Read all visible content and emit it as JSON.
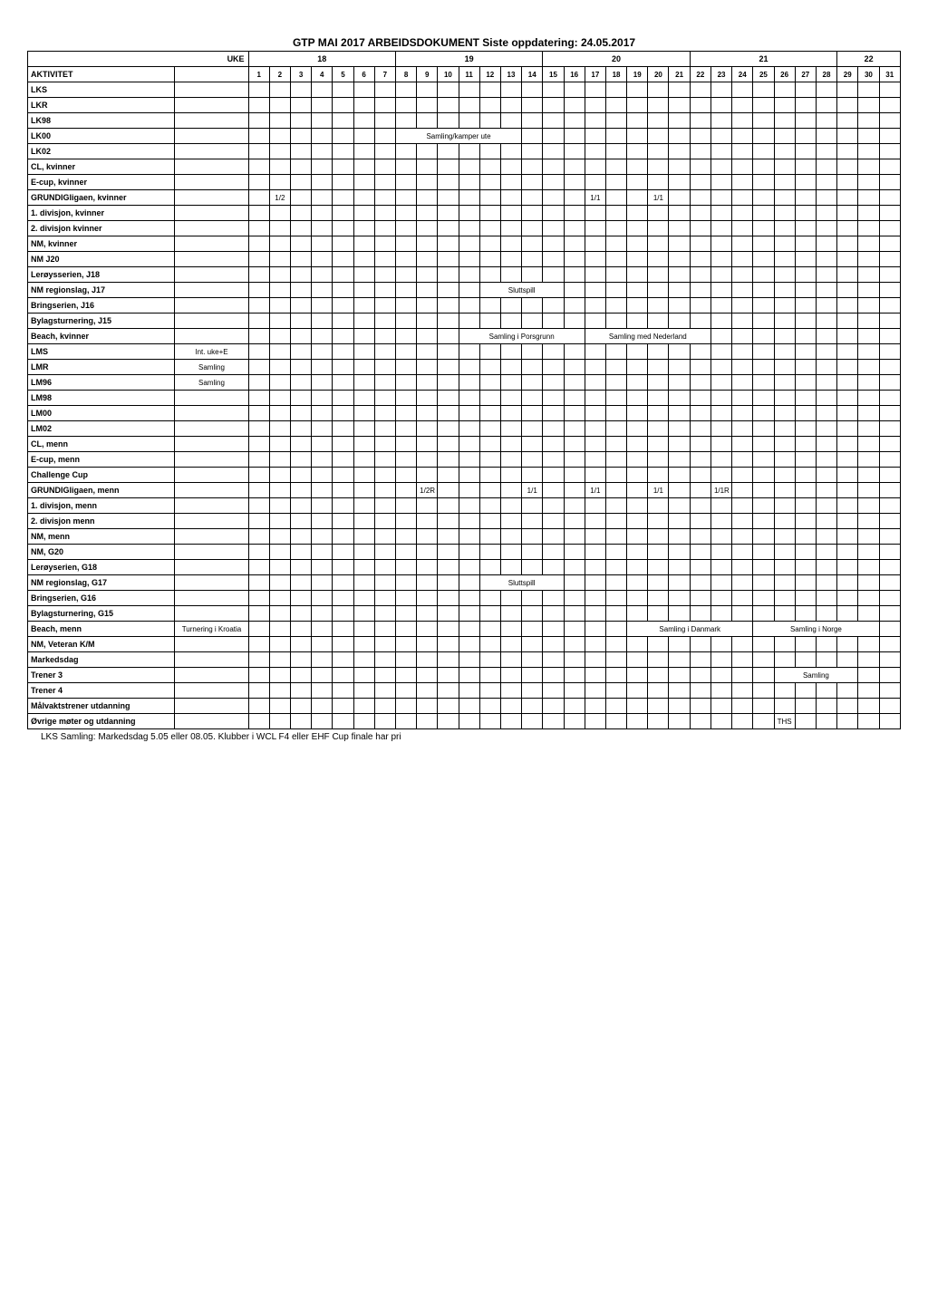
{
  "title": "GTP MAI 2017 ARBEIDSDOKUMENT Siste oppdatering: 24.05.2017",
  "uke_label": "UKE",
  "akt_label": "AKTIVITET",
  "weeks": [
    "18",
    "19",
    "20",
    "21",
    "22"
  ],
  "days": [
    "1",
    "2",
    "3",
    "4",
    "5",
    "6",
    "7",
    "8",
    "9",
    "10",
    "11",
    "12",
    "13",
    "14",
    "15",
    "16",
    "17",
    "18",
    "19",
    "20",
    "21",
    "22",
    "23",
    "24",
    "25",
    "26",
    "27",
    "28",
    "29",
    "30",
    "31"
  ],
  "activities": [
    {
      "name": "LKS",
      "cells": {
        "7": ""
      }
    },
    {
      "name": "LKR"
    },
    {
      "name": "LK98"
    },
    {
      "name": "LK00",
      "cells": {
        "8": "Samling/kamper ute"
      }
    },
    {
      "name": "LK02"
    },
    {
      "name": "CL, kvinner"
    },
    {
      "name": "E-cup, kvinner"
    },
    {
      "name": "GRUNDIGligaen, kvinner",
      "cells": {
        "2": "1/2",
        "17": "1/1",
        "20": "1/1"
      }
    },
    {
      "name": "1. divisjon, kvinner"
    },
    {
      "name": "2. divisjon kvinner"
    },
    {
      "name": "NM, kvinner"
    },
    {
      "name": "NM J20"
    },
    {
      "name": "Lerøysserien, J18"
    },
    {
      "name": "NM regionslag, J17",
      "cells": {
        "12": "Sluttspill"
      }
    },
    {
      "name": "Bringserien, J16"
    },
    {
      "name": "Bylagsturnering, J15"
    },
    {
      "name": "Beach, kvinner",
      "cells": {
        "11": "Samling i Porsgrunn",
        "17": "Samling med Nederland"
      }
    },
    {
      "name": "LMS",
      "note": "Int. uke+E"
    },
    {
      "name": "LMR",
      "note": "Samling"
    },
    {
      "name": "LM96",
      "note": "Samling"
    },
    {
      "name": "LM98"
    },
    {
      "name": "LM00"
    },
    {
      "name": "LM02"
    },
    {
      "name": "CL, menn"
    },
    {
      "name": "E-cup, menn"
    },
    {
      "name": "Challenge Cup"
    },
    {
      "name": "GRUNDIGligaen, menn",
      "cells": {
        "9": "1/2R",
        "14": "1/1",
        "17": "1/1",
        "20": "1/1",
        "23": "1/1R"
      }
    },
    {
      "name": "1. divisjon, menn"
    },
    {
      "name": "2. divisjon menn"
    },
    {
      "name": "NM, menn"
    },
    {
      "name": "NM, G20"
    },
    {
      "name": "Lerøyserien, G18"
    },
    {
      "name": "NM regionslag, G17",
      "cells": {
        "12": "Sluttspill"
      }
    },
    {
      "name": "Bringserien, G16"
    },
    {
      "name": "Bylagsturnering, G15"
    },
    {
      "name": "Beach, menn",
      "note": "Turnering i Kroatia",
      "cells": {
        "19": "Samling i Danmark",
        "25": "Samling i Norge"
      }
    },
    {
      "name": "NM, Veteran K/M"
    },
    {
      "name": "Markedsdag"
    },
    {
      "name": "Trener 3",
      "cells": {
        "26": "Samling"
      }
    },
    {
      "name": "Trener 4"
    },
    {
      "name": "Målvaktstrener utdanning"
    },
    {
      "name": "Øvrige møter og utdanning",
      "cells": {
        "26": "THS"
      }
    }
  ],
  "footnote": "LKS Samling: Markedsdag 5.05 eller 08.05. Klubber i WCL F4 eller EHF Cup finale har pri",
  "week_spans": [
    7,
    7,
    7,
    7,
    3
  ],
  "colors": {
    "background": "#ffffff",
    "border": "#000000",
    "text": "#000000"
  }
}
